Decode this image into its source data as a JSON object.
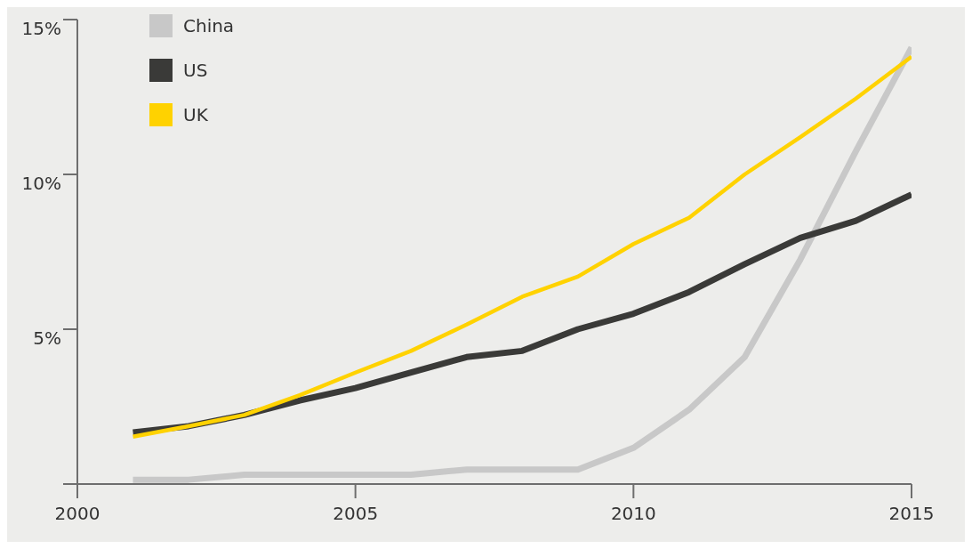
{
  "chart_data": {
    "type": "line",
    "x": [
      2001,
      2002,
      2003,
      2004,
      2005,
      2006,
      2007,
      2008,
      2009,
      2010,
      2011,
      2012,
      2013,
      2014,
      2015
    ],
    "series": [
      {
        "name": "China",
        "color": "#c8c8c8",
        "values": [
          0.14,
          0.14,
          0.3,
          0.3,
          0.3,
          0.3,
          0.47,
          0.47,
          0.47,
          1.17,
          2.4,
          4.1,
          7.25,
          10.75,
          14.1
        ]
      },
      {
        "name": "US",
        "color": "#3a3a38",
        "values": [
          1.67,
          1.87,
          2.23,
          2.7,
          3.1,
          3.6,
          4.1,
          4.3,
          5.0,
          5.5,
          6.2,
          7.1,
          7.95,
          8.5,
          9.35
        ]
      },
      {
        "name": "UK",
        "color": "#ffd200",
        "values": [
          1.53,
          1.87,
          2.23,
          2.87,
          3.6,
          4.3,
          5.15,
          6.05,
          6.7,
          7.75,
          8.6,
          10.0,
          11.2,
          12.45,
          13.8
        ]
      }
    ],
    "xlim": [
      2000,
      2015
    ],
    "xticks": [
      2000,
      2005,
      2010,
      2015
    ],
    "ylim": [
      0,
      15
    ],
    "yticks": [
      {
        "value": 0,
        "label": null
      },
      {
        "value": 5,
        "label": "5%"
      },
      {
        "value": 10,
        "label": "10%"
      },
      {
        "value": 15,
        "label": "15%"
      }
    ],
    "grid": false,
    "legend": "top left",
    "marker": "none",
    "line_style": "solid"
  }
}
